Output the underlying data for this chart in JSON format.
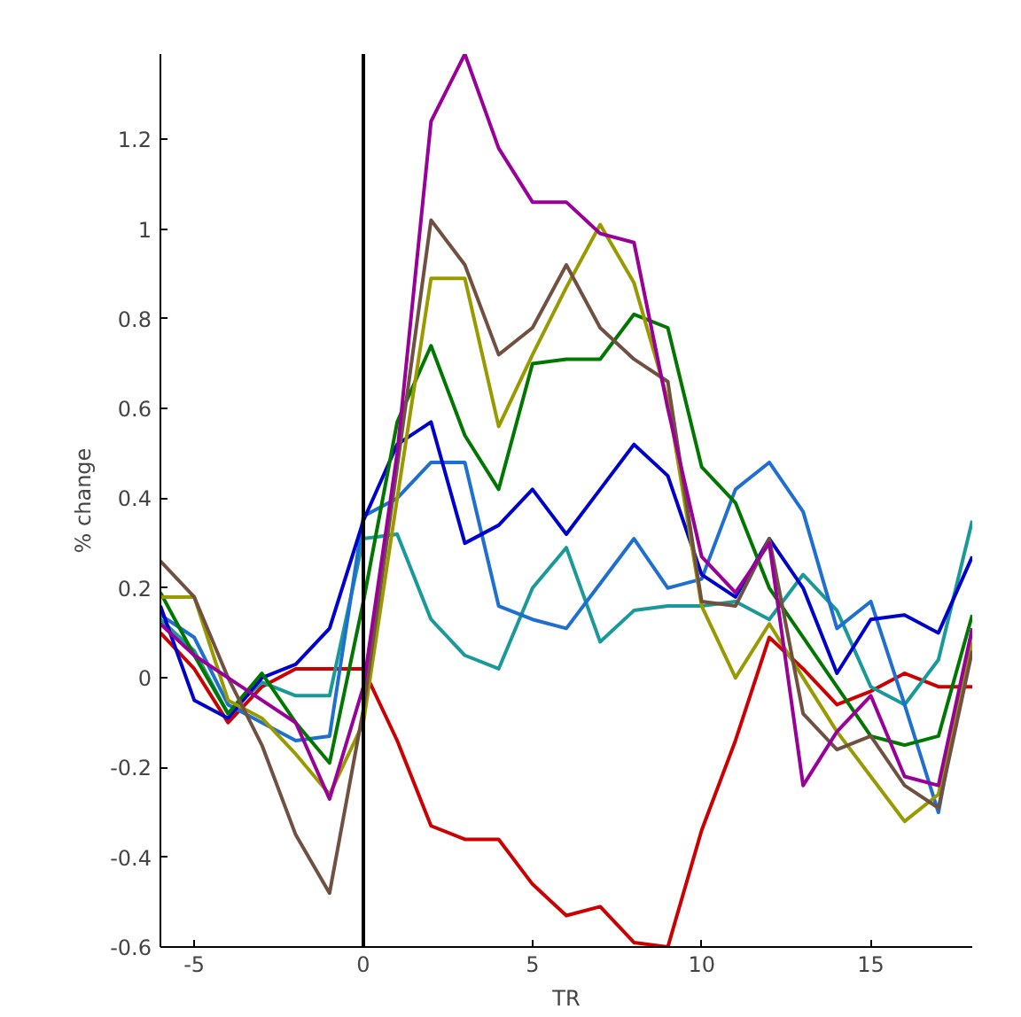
{
  "chart_data": {
    "type": "line",
    "xlabel": "TR",
    "ylabel": "% change",
    "x": [
      -6,
      -5,
      -4,
      -3,
      -2,
      -1,
      0,
      1,
      2,
      3,
      4,
      5,
      6,
      7,
      8,
      9,
      10,
      11,
      12,
      13,
      14,
      15,
      16,
      17,
      18
    ],
    "xlim": [
      -6,
      18
    ],
    "xticks": [
      -5,
      0,
      5,
      10,
      15
    ],
    "ylim": [
      -0.6,
      1.39
    ],
    "yticks": [
      -0.6,
      -0.4,
      -0.2,
      0,
      0.2,
      0.4,
      0.6,
      0.8,
      1,
      1.2
    ],
    "grid": false,
    "ref_lines": [
      {
        "axis": "x",
        "value": 0,
        "color": "#000000"
      }
    ],
    "series": [
      {
        "color": "#cc0000",
        "values": [
          0.1,
          0.02,
          -0.1,
          -0.02,
          0.02,
          0.02,
          0.02,
          -0.14,
          -0.33,
          -0.36,
          -0.36,
          -0.46,
          -0.53,
          -0.51,
          -0.59,
          -0.6,
          -0.34,
          -0.14,
          0.09,
          0.02,
          -0.06,
          -0.03,
          0.01,
          -0.02,
          -0.02
        ]
      },
      {
        "color": "#1a9999",
        "values": [
          0.13,
          0.06,
          -0.08,
          -0.01,
          -0.04,
          -0.04,
          0.31,
          0.32,
          0.13,
          0.05,
          0.02,
          0.2,
          0.29,
          0.08,
          0.15,
          0.16,
          0.16,
          0.17,
          0.13,
          0.23,
          0.15,
          -0.02,
          -0.06,
          0.04,
          0.35
        ]
      },
      {
        "color": "#1e6fd0",
        "values": [
          0.14,
          0.09,
          -0.06,
          -0.1,
          -0.14,
          -0.13,
          0.36,
          0.4,
          0.48,
          0.48,
          0.16,
          0.13,
          0.11,
          0.21,
          0.31,
          0.2,
          0.22,
          0.42,
          0.48,
          0.37,
          0.11,
          0.17,
          -0.06,
          -0.3,
          0.11
        ]
      },
      {
        "color": "#0000cc",
        "values": [
          0.16,
          -0.05,
          -0.09,
          0.0,
          0.03,
          0.11,
          0.35,
          0.52,
          0.57,
          0.3,
          0.34,
          0.42,
          0.32,
          0.42,
          0.52,
          0.45,
          0.23,
          0.18,
          0.31,
          0.2,
          0.01,
          0.13,
          0.14,
          0.1,
          0.27
        ]
      },
      {
        "color": "#007700",
        "values": [
          0.19,
          0.05,
          -0.08,
          0.01,
          -0.1,
          -0.19,
          0.17,
          0.57,
          0.74,
          0.54,
          0.42,
          0.7,
          0.71,
          0.71,
          0.81,
          0.78,
          0.47,
          0.39,
          0.2,
          0.09,
          -0.02,
          -0.13,
          -0.15,
          -0.13,
          0.14
        ]
      },
      {
        "color": "#999900",
        "values": [
          0.18,
          0.18,
          -0.05,
          -0.09,
          -0.17,
          -0.26,
          -0.1,
          0.4,
          0.89,
          0.89,
          0.56,
          0.72,
          0.87,
          1.01,
          0.88,
          0.62,
          0.16,
          0.0,
          0.12,
          0.0,
          -0.12,
          -0.22,
          -0.32,
          -0.26,
          0.08
        ]
      },
      {
        "color": "#705040",
        "values": [
          0.26,
          0.18,
          0.0,
          -0.15,
          -0.35,
          -0.48,
          -0.07,
          0.47,
          1.02,
          0.92,
          0.72,
          0.78,
          0.92,
          0.78,
          0.71,
          0.66,
          0.17,
          0.16,
          0.31,
          -0.08,
          -0.16,
          -0.13,
          -0.24,
          -0.29,
          0.06
        ]
      },
      {
        "color": "#990099",
        "values": [
          0.12,
          0.05,
          0.0,
          -0.05,
          -0.1,
          -0.27,
          -0.02,
          0.5,
          1.24,
          1.39,
          1.18,
          1.06,
          1.06,
          0.99,
          0.97,
          0.6,
          0.27,
          0.19,
          0.3,
          -0.24,
          -0.12,
          -0.04,
          -0.22,
          -0.24,
          0.11
        ]
      }
    ]
  }
}
